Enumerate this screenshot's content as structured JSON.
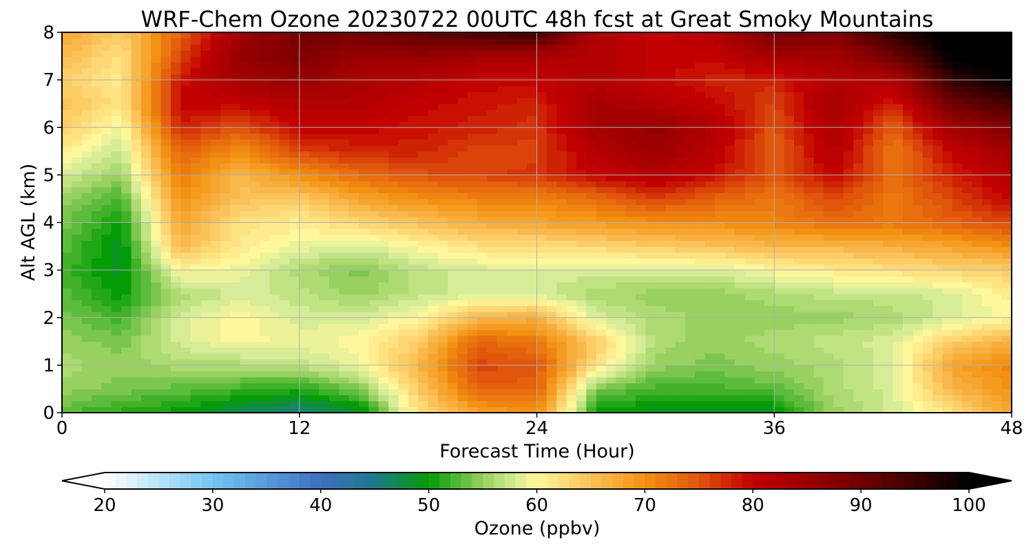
{
  "chart_data": {
    "type": "heatmap",
    "title": "WRF-Chem Ozone  20230722 00UTC 48h fcst at Great Smoky Mountains",
    "xlabel": "Forecast Time (Hour)",
    "ylabel": "Alt AGL (km)",
    "xlim": [
      0,
      48
    ],
    "ylim": [
      0,
      8
    ],
    "x_ticks": [
      "0",
      "12",
      "24",
      "36",
      "48"
    ],
    "y_ticks": [
      "0",
      "1",
      "2",
      "3",
      "4",
      "5",
      "6",
      "7",
      "8"
    ],
    "grid": true,
    "x": [
      0,
      3,
      6,
      9,
      12,
      15,
      18,
      21,
      24,
      27,
      30,
      33,
      36,
      39,
      42,
      45,
      48
    ],
    "y": [
      0,
      0.5,
      1,
      1.5,
      2,
      2.5,
      3,
      3.5,
      4,
      4.5,
      5,
      5.5,
      6,
      6.5,
      7,
      7.5,
      8
    ],
    "z": [
      [
        53,
        51,
        50,
        47,
        45,
        48,
        62,
        68,
        70,
        50,
        49,
        48,
        49,
        55,
        58,
        62,
        68
      ],
      [
        55,
        54,
        53,
        52,
        51,
        54,
        64,
        74,
        74,
        54,
        52,
        52,
        53,
        56,
        58,
        66,
        70
      ],
      [
        56,
        55,
        56,
        56,
        57,
        59,
        66,
        76,
        75,
        62,
        55,
        54,
        55,
        56,
        58,
        68,
        71
      ],
      [
        55,
        54,
        58,
        60,
        59,
        60,
        64,
        74,
        72,
        64,
        56,
        55,
        56,
        57,
        58,
        64,
        67
      ],
      [
        54,
        52,
        58,
        60,
        58,
        58,
        60,
        66,
        67,
        58,
        56,
        55,
        55,
        55,
        56,
        58,
        60
      ],
      [
        53,
        50,
        56,
        58,
        57,
        55,
        57,
        58,
        58,
        56,
        55,
        55,
        56,
        57,
        57,
        58,
        61
      ],
      [
        52,
        49,
        60,
        59,
        56,
        54,
        57,
        58,
        58,
        58,
        58,
        58,
        60,
        61,
        62,
        63,
        64
      ],
      [
        53,
        49,
        66,
        61,
        59,
        58,
        60,
        62,
        62,
        63,
        64,
        65,
        66,
        66,
        67,
        68,
        70
      ],
      [
        54,
        50,
        68,
        62,
        61,
        63,
        65,
        67,
        68,
        69,
        70,
        70,
        71,
        73,
        72,
        74,
        76
      ],
      [
        55,
        52,
        70,
        65,
        64,
        68,
        70,
        71,
        71,
        73,
        76,
        74,
        72,
        76,
        72,
        76,
        80
      ],
      [
        58,
        55,
        72,
        66,
        70,
        73,
        75,
        76,
        77,
        80,
        82,
        79,
        75,
        80,
        73,
        78,
        82
      ],
      [
        61,
        57,
        74,
        70,
        76,
        78,
        78,
        76,
        76,
        82,
        85,
        81,
        74,
        82,
        72,
        80,
        84
      ],
      [
        64,
        59,
        78,
        75,
        80,
        80,
        79,
        78,
        77,
        84,
        86,
        82,
        75,
        83,
        74,
        84,
        88
      ],
      [
        65,
        62,
        80,
        80,
        82,
        82,
        80,
        79,
        78,
        84,
        82,
        80,
        76,
        84,
        78,
        90,
        94
      ],
      [
        64,
        61,
        79,
        84,
        86,
        83,
        82,
        80,
        80,
        82,
        80,
        78,
        78,
        82,
        82,
        96,
        100
      ],
      [
        66,
        62,
        76,
        86,
        88,
        85,
        86,
        84,
        83,
        82,
        80,
        80,
        84,
        84,
        90,
        100,
        102
      ],
      [
        68,
        64,
        74,
        84,
        90,
        90,
        92,
        94,
        96,
        82,
        80,
        82,
        90,
        88,
        96,
        102,
        104
      ]
    ],
    "colorbar": {
      "label": "Ozone  (ppbv)",
      "min": 20,
      "max": 100,
      "ticks": [
        "20",
        "30",
        "40",
        "50",
        "60",
        "70",
        "80",
        "90",
        "100"
      ],
      "extend": "both",
      "stops": [
        [
          20,
          "#ffffff"
        ],
        [
          30,
          "#72c6f2"
        ],
        [
          40,
          "#3e6fc0"
        ],
        [
          45,
          "#1f7a8a"
        ],
        [
          50,
          "#059c05"
        ],
        [
          55,
          "#98d160"
        ],
        [
          58,
          "#d6ec96"
        ],
        [
          60,
          "#fff79c"
        ],
        [
          65,
          "#fbc25a"
        ],
        [
          70,
          "#f39112"
        ],
        [
          75,
          "#e0560c"
        ],
        [
          80,
          "#c20000"
        ],
        [
          85,
          "#9c0000"
        ],
        [
          90,
          "#700000"
        ],
        [
          95,
          "#3c0000"
        ],
        [
          100,
          "#000000"
        ]
      ]
    }
  }
}
